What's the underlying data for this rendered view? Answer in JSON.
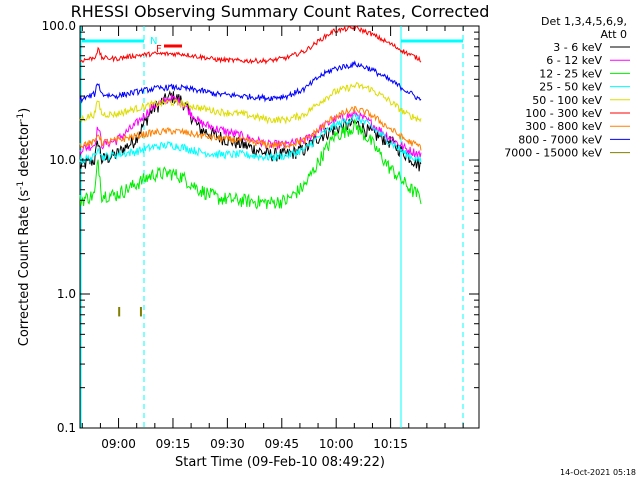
{
  "chart_data": {
    "type": "line",
    "title": "RHESSI Observing Summary Count Rates, Corrected",
    "xlabel": "Start Time (09-Feb-10 08:49:22)",
    "ylabel_parts": [
      "Corrected Count Rate (s",
      "-1",
      " detector",
      "-1",
      ")"
    ],
    "y_scale": "log",
    "ylim": [
      0.1,
      100.0
    ],
    "xlim_min": [
      0,
      110
    ],
    "x_ticks": [
      {
        "t": 10.63,
        "label": "09:00"
      },
      {
        "t": 25.63,
        "label": "09:15"
      },
      {
        "t": 40.63,
        "label": "09:30"
      },
      {
        "t": 55.63,
        "label": "09:45"
      },
      {
        "t": 70.63,
        "label": "10:00"
      },
      {
        "t": 85.63,
        "label": "10:15"
      }
    ],
    "y_ticks": [
      {
        "v": 0.1,
        "label": "0.1"
      },
      {
        "v": 1.0,
        "label": "1.0"
      },
      {
        "v": 10.0,
        "label": "10.0"
      },
      {
        "v": 100.0,
        "label": "100.0"
      }
    ],
    "legend_header": [
      "Det 1,3,4,5,6,9,",
      "Att 0"
    ],
    "legend_position": "right",
    "series": [
      {
        "name": "3 - 6 keV",
        "color": "#000000",
        "points": [
          [
            0,
            9
          ],
          [
            4,
            10
          ],
          [
            5,
            14
          ],
          [
            6,
            10
          ],
          [
            10,
            11
          ],
          [
            15,
            14
          ],
          [
            20,
            24
          ],
          [
            25,
            30
          ],
          [
            28,
            28
          ],
          [
            33,
            17
          ],
          [
            38,
            15
          ],
          [
            45,
            13
          ],
          [
            52,
            11
          ],
          [
            57,
            11
          ],
          [
            62,
            12
          ],
          [
            66,
            15
          ],
          [
            70,
            17
          ],
          [
            76,
            19
          ],
          [
            80,
            16
          ],
          [
            85,
            14
          ],
          [
            90,
            11
          ],
          [
            94,
            9
          ]
        ]
      },
      {
        "name": "6 - 12 keV",
        "color": "#ff00ff",
        "points": [
          [
            0,
            12
          ],
          [
            4,
            13
          ],
          [
            5,
            18
          ],
          [
            6,
            13
          ],
          [
            10,
            14
          ],
          [
            15,
            18
          ],
          [
            20,
            25
          ],
          [
            25,
            29
          ],
          [
            28,
            27
          ],
          [
            33,
            19
          ],
          [
            38,
            17
          ],
          [
            45,
            15
          ],
          [
            52,
            13
          ],
          [
            57,
            13
          ],
          [
            62,
            14
          ],
          [
            66,
            17
          ],
          [
            70,
            20
          ],
          [
            76,
            22
          ],
          [
            80,
            19
          ],
          [
            85,
            15
          ],
          [
            90,
            12
          ],
          [
            94,
            11
          ]
        ]
      },
      {
        "name": "12 - 25 keV",
        "color": "#00ee00",
        "points": [
          [
            0,
            5
          ],
          [
            4,
            5.5
          ],
          [
            5,
            10
          ],
          [
            6,
            5.5
          ],
          [
            10,
            5.5
          ],
          [
            15,
            6.5
          ],
          [
            20,
            7.8
          ],
          [
            25,
            8
          ],
          [
            28,
            7.5
          ],
          [
            33,
            6
          ],
          [
            38,
            5.2
          ],
          [
            45,
            5
          ],
          [
            52,
            4.8
          ],
          [
            57,
            5
          ],
          [
            62,
            6.5
          ],
          [
            66,
            10
          ],
          [
            70,
            15
          ],
          [
            76,
            18
          ],
          [
            80,
            14
          ],
          [
            85,
            9
          ],
          [
            90,
            6.5
          ],
          [
            94,
            5.2
          ]
        ]
      },
      {
        "name": "25 - 50 keV",
        "color": "#00ffff",
        "points": [
          [
            0,
            10
          ],
          [
            4,
            10.5
          ],
          [
            5,
            13
          ],
          [
            6,
            10.5
          ],
          [
            10,
            11
          ],
          [
            15,
            11.5
          ],
          [
            20,
            12.5
          ],
          [
            25,
            13
          ],
          [
            28,
            12.5
          ],
          [
            33,
            11.5
          ],
          [
            38,
            11
          ],
          [
            45,
            11
          ],
          [
            52,
            10.5
          ],
          [
            57,
            10.8
          ],
          [
            62,
            12
          ],
          [
            66,
            15
          ],
          [
            70,
            18
          ],
          [
            76,
            21
          ],
          [
            80,
            18
          ],
          [
            85,
            14
          ],
          [
            90,
            11
          ],
          [
            94,
            9.8
          ]
        ]
      },
      {
        "name": "50 - 100 keV",
        "color": "#dddd00",
        "points": [
          [
            0,
            20
          ],
          [
            4,
            22
          ],
          [
            5,
            28
          ],
          [
            6,
            22
          ],
          [
            10,
            22
          ],
          [
            15,
            24
          ],
          [
            20,
            26
          ],
          [
            25,
            27
          ],
          [
            28,
            26.5
          ],
          [
            33,
            24.5
          ],
          [
            38,
            23
          ],
          [
            45,
            22
          ],
          [
            52,
            20
          ],
          [
            57,
            20
          ],
          [
            62,
            22
          ],
          [
            66,
            27
          ],
          [
            70,
            32
          ],
          [
            76,
            36
          ],
          [
            80,
            34
          ],
          [
            85,
            28
          ],
          [
            90,
            22
          ],
          [
            94,
            20
          ]
        ]
      },
      {
        "name": "100 - 300 keV",
        "color": "#ff0000",
        "points": [
          [
            0,
            55
          ],
          [
            4,
            58
          ],
          [
            5,
            67
          ],
          [
            6,
            58
          ],
          [
            10,
            57
          ],
          [
            15,
            60
          ],
          [
            20,
            62
          ],
          [
            25,
            62
          ],
          [
            28,
            62
          ],
          [
            33,
            59
          ],
          [
            38,
            56
          ],
          [
            45,
            55
          ],
          [
            52,
            55
          ],
          [
            57,
            58
          ],
          [
            62,
            65
          ],
          [
            66,
            78
          ],
          [
            70,
            92
          ],
          [
            76,
            97
          ],
          [
            80,
            88
          ],
          [
            85,
            75
          ],
          [
            90,
            63
          ],
          [
            94,
            56
          ]
        ]
      },
      {
        "name": "300 - 800 keV",
        "color": "#ff8000",
        "points": [
          [
            0,
            13
          ],
          [
            4,
            13.5
          ],
          [
            5,
            16
          ],
          [
            6,
            13.5
          ],
          [
            10,
            14
          ],
          [
            15,
            15
          ],
          [
            20,
            16
          ],
          [
            25,
            16.5
          ],
          [
            28,
            16.2
          ],
          [
            33,
            15.3
          ],
          [
            38,
            14.5
          ],
          [
            45,
            14
          ],
          [
            52,
            13
          ],
          [
            57,
            13
          ],
          [
            62,
            14
          ],
          [
            66,
            17
          ],
          [
            70,
            21
          ],
          [
            76,
            24
          ],
          [
            80,
            22
          ],
          [
            85,
            17.5
          ],
          [
            90,
            14
          ],
          [
            94,
            12.5
          ]
        ]
      },
      {
        "name": "800 - 7000 keV",
        "color": "#0000ff",
        "points": [
          [
            0,
            28
          ],
          [
            4,
            31
          ],
          [
            5,
            38
          ],
          [
            6,
            31
          ],
          [
            10,
            30
          ],
          [
            15,
            32
          ],
          [
            20,
            34
          ],
          [
            25,
            35
          ],
          [
            28,
            34.5
          ],
          [
            33,
            33
          ],
          [
            38,
            31
          ],
          [
            45,
            30
          ],
          [
            52,
            29
          ],
          [
            57,
            30
          ],
          [
            62,
            34
          ],
          [
            66,
            42
          ],
          [
            70,
            48
          ],
          [
            76,
            52
          ],
          [
            80,
            48
          ],
          [
            85,
            40
          ],
          [
            90,
            33
          ],
          [
            94,
            28
          ]
        ]
      },
      {
        "name": "7000 - 15000 keV",
        "color": "#808000",
        "points": [
          [
            10.8,
            0.8
          ],
          [
            10.8,
            0.68
          ],
          [
            16.8,
            0.8
          ],
          [
            16.8,
            0.68
          ]
        ]
      }
    ],
    "annotations": [
      {
        "label": "N",
        "t": 10.2,
        "color": "#00ffff"
      },
      {
        "label": "F",
        "t": 16.2,
        "color": "#ff0000"
      }
    ],
    "timestamp": "14-Oct-2021 05:18"
  }
}
